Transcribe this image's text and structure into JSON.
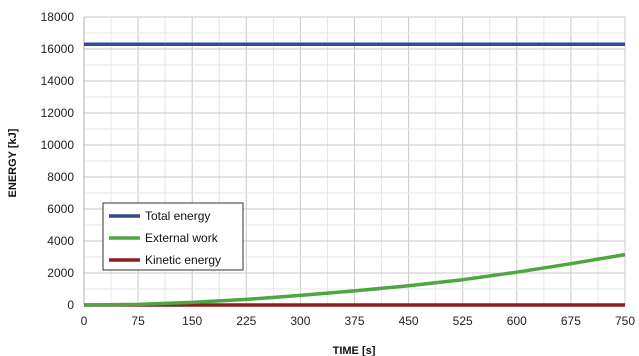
{
  "chart_data": {
    "type": "line",
    "title": "",
    "xlabel": "TIME [s]",
    "ylabel": "ENERGY [kJ]",
    "xlim": [
      0,
      750
    ],
    "ylim": [
      0,
      18000
    ],
    "x_ticks": [
      0,
      75,
      150,
      225,
      300,
      375,
      450,
      525,
      600,
      675,
      750
    ],
    "y_ticks": [
      0,
      2000,
      4000,
      6000,
      8000,
      10000,
      12000,
      14000,
      16000,
      18000
    ],
    "grid": true,
    "legend_position": "bottom-left",
    "x": [
      0,
      75,
      150,
      225,
      300,
      375,
      450,
      525,
      600,
      675,
      750
    ],
    "series": [
      {
        "name": "Total energy",
        "color": "#2b4f8c",
        "values": [
          16300,
          16300,
          16300,
          16300,
          16300,
          16300,
          16300,
          16300,
          16300,
          16300,
          16300
        ]
      },
      {
        "name": "External work",
        "color": "#4ea640",
        "values": [
          0,
          40,
          160,
          350,
          600,
          880,
          1200,
          1580,
          2050,
          2580,
          3150
        ]
      },
      {
        "name": "Kinetic energy",
        "color": "#8b1f1f",
        "values": [
          0,
          0,
          0,
          0,
          0,
          0,
          0,
          0,
          0,
          0,
          0
        ]
      }
    ]
  }
}
